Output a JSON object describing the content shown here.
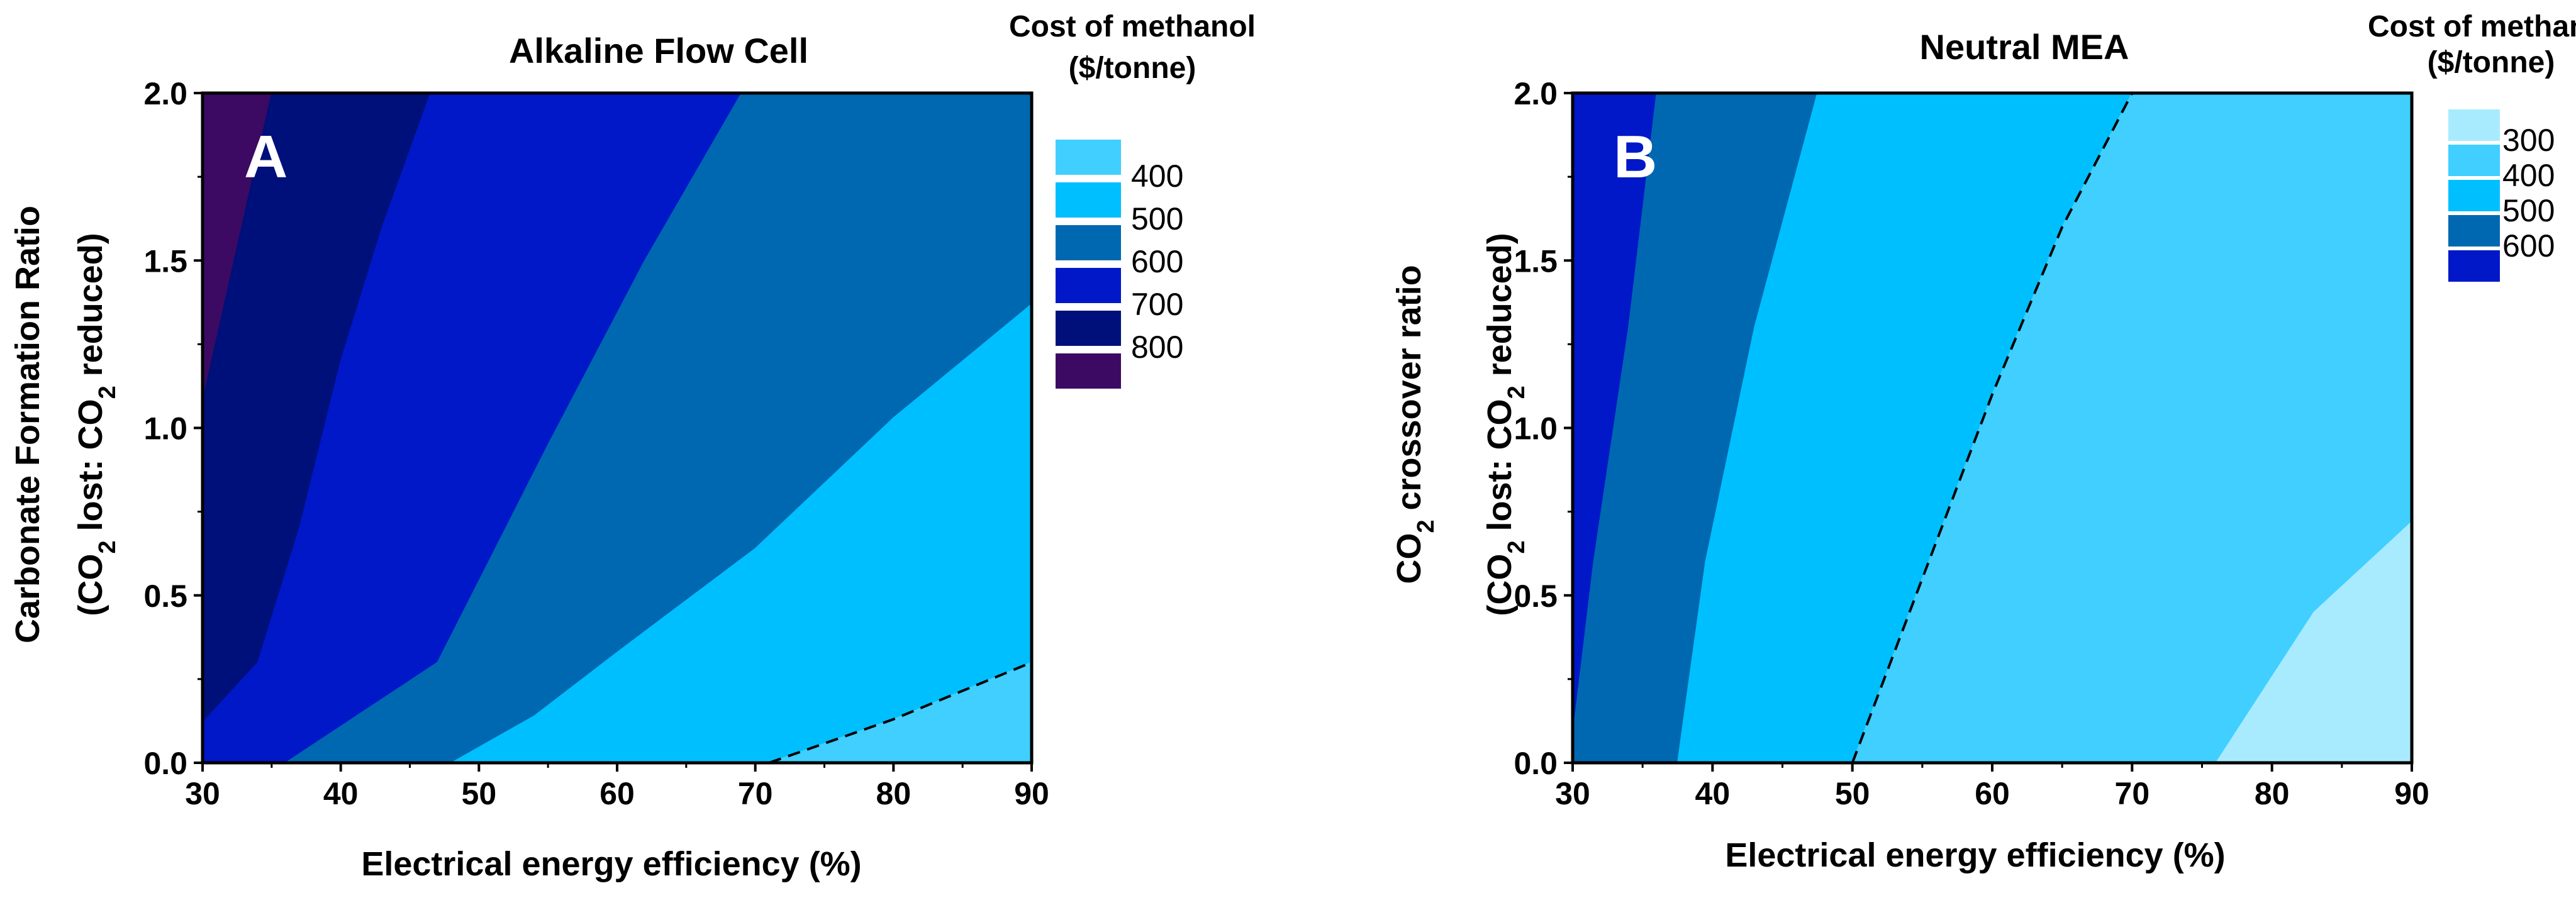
{
  "chart_data": [
    {
      "type": "contour",
      "panel_label": "A",
      "title": "Alkaline Flow Cell",
      "xlabel": "Electrical energy efficiency (%)",
      "ylabel_line1": "Carbonate Formation Ratio",
      "ylabel_line2": [
        "(CO",
        "2",
        " lost:  CO",
        "2",
        " reduced)"
      ],
      "xlim": [
        30,
        90
      ],
      "ylim": [
        0,
        2
      ],
      "xticks": [
        30,
        40,
        50,
        60,
        70,
        80,
        90
      ],
      "yticks": [
        "0.0",
        "0.5",
        "1.0",
        "1.5",
        "2.0"
      ],
      "legend_title": [
        "Cost of methanol",
        "($/tonne)"
      ],
      "legend": [
        {
          "label": "400",
          "color": "#40CFFF"
        },
        {
          "label": "500",
          "color": "#00BFFF"
        },
        {
          "label": "600",
          "color": "#0068B0"
        },
        {
          "label": "700",
          "color": "#0018C8"
        },
        {
          "label": "800",
          "color": "#00107A"
        },
        {
          "label": "",
          "color": "#3C0A62"
        }
      ],
      "regions": [
        {
          "name": "region-800",
          "color": "#3C0A62",
          "boundary": [
            [
              30,
              2.0
            ],
            [
              35,
              2.0
            ],
            [
              30,
              1.08
            ]
          ]
        },
        {
          "name": "region-700",
          "color": "#00107A",
          "boundary": [
            [
              35,
              2.0
            ],
            [
              46.5,
              2.0
            ],
            [
              43,
              1.6
            ],
            [
              40,
              1.2
            ],
            [
              37,
              0.7
            ],
            [
              34,
              0.3
            ],
            [
              30,
              0.12
            ],
            [
              30,
              1.08
            ]
          ]
        },
        {
          "name": "region-600",
          "color": "#0018C8",
          "boundary": [
            [
              46.5,
              2.0
            ],
            [
              69,
              2.0
            ],
            [
              62,
              1.5
            ],
            [
              55,
              0.95
            ],
            [
              47,
              0.3
            ],
            [
              36,
              0.0
            ],
            [
              30,
              0.0
            ],
            [
              30,
              0.12
            ],
            [
              34,
              0.3
            ],
            [
              37,
              0.7
            ],
            [
              40,
              1.2
            ],
            [
              43,
              1.6
            ]
          ]
        },
        {
          "name": "region-500",
          "color": "#0068B0",
          "boundary": [
            [
              69,
              2.0
            ],
            [
              90,
              2.0
            ],
            [
              90,
              1.37
            ],
            [
              80,
              1.03
            ],
            [
              70,
              0.64
            ],
            [
              60,
              0.33
            ],
            [
              54,
              0.14
            ],
            [
              48,
              0.0
            ],
            [
              36,
              0.0
            ],
            [
              47,
              0.3
            ],
            [
              55,
              0.95
            ],
            [
              62,
              1.5
            ]
          ]
        },
        {
          "name": "region-400",
          "color": "#00BFFF",
          "boundary": [
            [
              90,
              1.37
            ],
            [
              90,
              0.3
            ],
            [
              80,
              0.13
            ],
            [
              71,
              0.0
            ],
            [
              48,
              0.0
            ],
            [
              54,
              0.14
            ],
            [
              60,
              0.33
            ],
            [
              70,
              0.64
            ],
            [
              80,
              1.03
            ]
          ]
        },
        {
          "name": "region-300",
          "color": "#40CFFF",
          "boundary": [
            [
              71,
              0.0
            ],
            [
              80,
              0.13
            ],
            [
              90,
              0.3
            ],
            [
              90,
              0.0
            ]
          ]
        }
      ],
      "dashed_contour": [
        [
          71,
          0.0
        ],
        [
          80,
          0.13
        ],
        [
          90,
          0.3
        ]
      ]
    },
    {
      "type": "contour",
      "panel_label": "B",
      "title": "Neutral MEA",
      "xlabel": "Electrical energy efficiency (%)",
      "ylabel_line1": [
        "CO",
        "2",
        " crossover ratio"
      ],
      "ylabel_line2": [
        "(CO",
        "2",
        " lost:  CO",
        "2",
        " reduced)"
      ],
      "xlim": [
        30,
        90
      ],
      "ylim": [
        0,
        2
      ],
      "xticks": [
        30,
        40,
        50,
        60,
        70,
        80,
        90
      ],
      "yticks": [
        "0.0",
        "0.5",
        "1.0",
        "1.5",
        "2.0"
      ],
      "legend_title": [
        "Cost of methanol",
        "($/tonne)"
      ],
      "legend": [
        {
          "label": "300",
          "color": "#A8EBFF"
        },
        {
          "label": "400",
          "color": "#40CFFF"
        },
        {
          "label": "500",
          "color": "#00BFFF"
        },
        {
          "label": "600",
          "color": "#0068B0"
        },
        {
          "label": "",
          "color": "#0018C8"
        }
      ],
      "regions": [
        {
          "name": "region-600",
          "color": "#0018C8",
          "boundary": [
            [
              30,
              2.0
            ],
            [
              36,
              2.0
            ],
            [
              34,
              1.3
            ],
            [
              31.5,
              0.6
            ],
            [
              30,
              0.08
            ]
          ]
        },
        {
          "name": "region-500",
          "color": "#0068B0",
          "boundary": [
            [
              36,
              2.0
            ],
            [
              47.5,
              2.0
            ],
            [
              43,
              1.3
            ],
            [
              39.5,
              0.6
            ],
            [
              37.5,
              0.0
            ],
            [
              30,
              0.0
            ],
            [
              30,
              0.08
            ],
            [
              31.5,
              0.6
            ],
            [
              34,
              1.3
            ]
          ]
        },
        {
          "name": "region-400",
          "color": "#00BFFF",
          "boundary": [
            [
              47.5,
              2.0
            ],
            [
              70,
              2.0
            ],
            [
              65,
              1.6
            ],
            [
              60,
              1.1
            ],
            [
              55,
              0.55
            ],
            [
              50,
              0.0
            ],
            [
              37.5,
              0.0
            ],
            [
              39.5,
              0.6
            ],
            [
              43,
              1.3
            ]
          ]
        },
        {
          "name": "region-300",
          "color": "#40CFFF",
          "boundary": [
            [
              70,
              2.0
            ],
            [
              90,
              2.0
            ],
            [
              90,
              0.72
            ],
            [
              83,
              0.45
            ],
            [
              76,
              0.0
            ],
            [
              50,
              0.0
            ],
            [
              55,
              0.55
            ],
            [
              60,
              1.1
            ],
            [
              65,
              1.6
            ]
          ]
        },
        {
          "name": "region-200",
          "color": "#A8EBFF",
          "boundary": [
            [
              76,
              0.0
            ],
            [
              83,
              0.45
            ],
            [
              90,
              0.72
            ],
            [
              90,
              0.0
            ]
          ]
        }
      ],
      "dashed_contour": [
        [
          50,
          0.0
        ],
        [
          55,
          0.55
        ],
        [
          60,
          1.1
        ],
        [
          65,
          1.6
        ],
        [
          70,
          2.0
        ]
      ]
    }
  ]
}
